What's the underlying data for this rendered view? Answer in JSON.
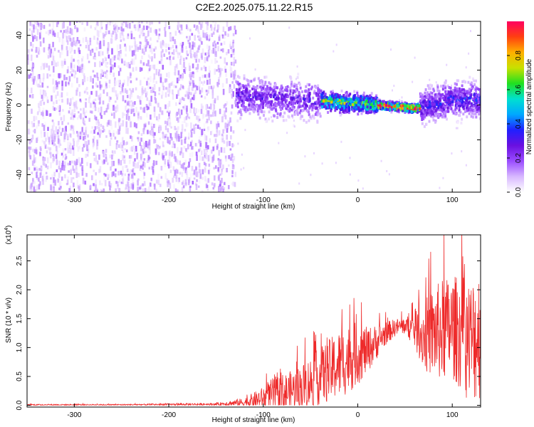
{
  "title": "C2E2.2025.075.11.22.R15",
  "colors": {
    "snr_line": "#ee2a2a",
    "colormap": [
      "#ffffff",
      "#d8b8ff",
      "#9a4cff",
      "#6a10e0",
      "#2020ff",
      "#00a8ff",
      "#00e0d0",
      "#20e020",
      "#c8e000",
      "#ffb000",
      "#ff4010",
      "#ff0060"
    ]
  },
  "chart_data": [
    {
      "type": "heatmap",
      "xlabel": "Height of straight line (km)",
      "ylabel": "Frequency (Hz)",
      "xlim": [
        -350,
        130
      ],
      "ylim": [
        -50,
        48
      ],
      "xticks": [
        -300,
        -200,
        -100,
        0,
        100
      ],
      "xtick_labels": [
        "-300",
        "-200",
        "-100",
        "0",
        "100"
      ],
      "yticks": [
        -40,
        -20,
        0,
        20,
        40
      ],
      "ytick_labels": [
        "-40",
        "-20",
        "0",
        "20",
        "40"
      ],
      "grid": false,
      "colorbar": {
        "label": "Normalized spectral amplitude",
        "range": [
          0,
          1
        ],
        "ticks": [
          0,
          0.2,
          0.4,
          0.6,
          0.8
        ],
        "tick_labels": [
          "0.0",
          "0.2",
          "0.4",
          "0.6",
          "0.8"
        ]
      },
      "regions": [
        {
          "x_range": [
            -350,
            -130
          ],
          "freq_range": [
            -50,
            48
          ],
          "amplitude": 0.12,
          "pattern": "broadband noise"
        },
        {
          "x_range": [
            -130,
            -40
          ],
          "freq_range": [
            -15,
            18
          ],
          "amplitude": 0.25,
          "center_freq": 4
        },
        {
          "x_range": [
            -40,
            20
          ],
          "freq_range": [
            -8,
            8
          ],
          "amplitude": 0.6,
          "center_freq": 1
        },
        {
          "x_range": [
            20,
            65
          ],
          "freq_range": [
            -4,
            3
          ],
          "amplitude": 0.9,
          "center_freq": -1
        },
        {
          "x_range": [
            65,
            130
          ],
          "freq_range": [
            -12,
            18
          ],
          "amplitude": 0.3,
          "center_freq": 3
        }
      ],
      "ridge": {
        "x": [
          -130,
          -100,
          -60,
          -30,
          0,
          20,
          40,
          60,
          80,
          100,
          130
        ],
        "freq": [
          5,
          4,
          3,
          2,
          1,
          0,
          -1,
          -2,
          1,
          3,
          3
        ]
      }
    },
    {
      "type": "line",
      "xlabel": "Height of straight line (km)",
      "ylabel": "SNR (10 * v/v)",
      "y_multiplier": "(x10",
      "y_multiplier_exp": "4",
      "y_multiplier_close": ")",
      "xlim": [
        -350,
        130
      ],
      "ylim": [
        -0.03,
        2.95
      ],
      "xticks": [
        -300,
        -200,
        -100,
        0,
        100
      ],
      "xtick_labels": [
        "-300",
        "-200",
        "-100",
        "0",
        "100"
      ],
      "yticks": [
        0,
        0.5,
        1.0,
        1.5,
        2.0,
        2.5
      ],
      "ytick_labels": [
        "0.0",
        "0.5",
        "1.0",
        "1.5",
        "2.0",
        "2.5"
      ],
      "grid": false,
      "series": [
        {
          "x": [
            -350,
            -250,
            -150,
            -120,
            -100,
            -90,
            -80,
            -70,
            -60,
            -50,
            -40,
            -30,
            -20,
            -10,
            0,
            10,
            20,
            30,
            40,
            50,
            60,
            70,
            80,
            90,
            100,
            110,
            120,
            130
          ],
          "y": [
            0.01,
            0.01,
            0.02,
            0.05,
            0.12,
            0.18,
            0.2,
            0.25,
            0.3,
            0.4,
            0.5,
            0.6,
            0.7,
            0.8,
            0.9,
            0.95,
            1.1,
            1.25,
            1.35,
            1.38,
            1.3,
            1.2,
            1.25,
            1.3,
            1.35,
            1.25,
            1.1,
            1.3
          ],
          "spread": [
            0.01,
            0.01,
            0.02,
            0.08,
            0.2,
            0.3,
            0.35,
            0.35,
            0.4,
            0.45,
            0.5,
            0.55,
            0.6,
            0.6,
            0.55,
            0.4,
            0.3,
            0.2,
            0.15,
            0.15,
            0.3,
            0.6,
            0.8,
            0.9,
            0.9,
            1.0,
            1.1,
            1.2
          ]
        }
      ]
    }
  ]
}
